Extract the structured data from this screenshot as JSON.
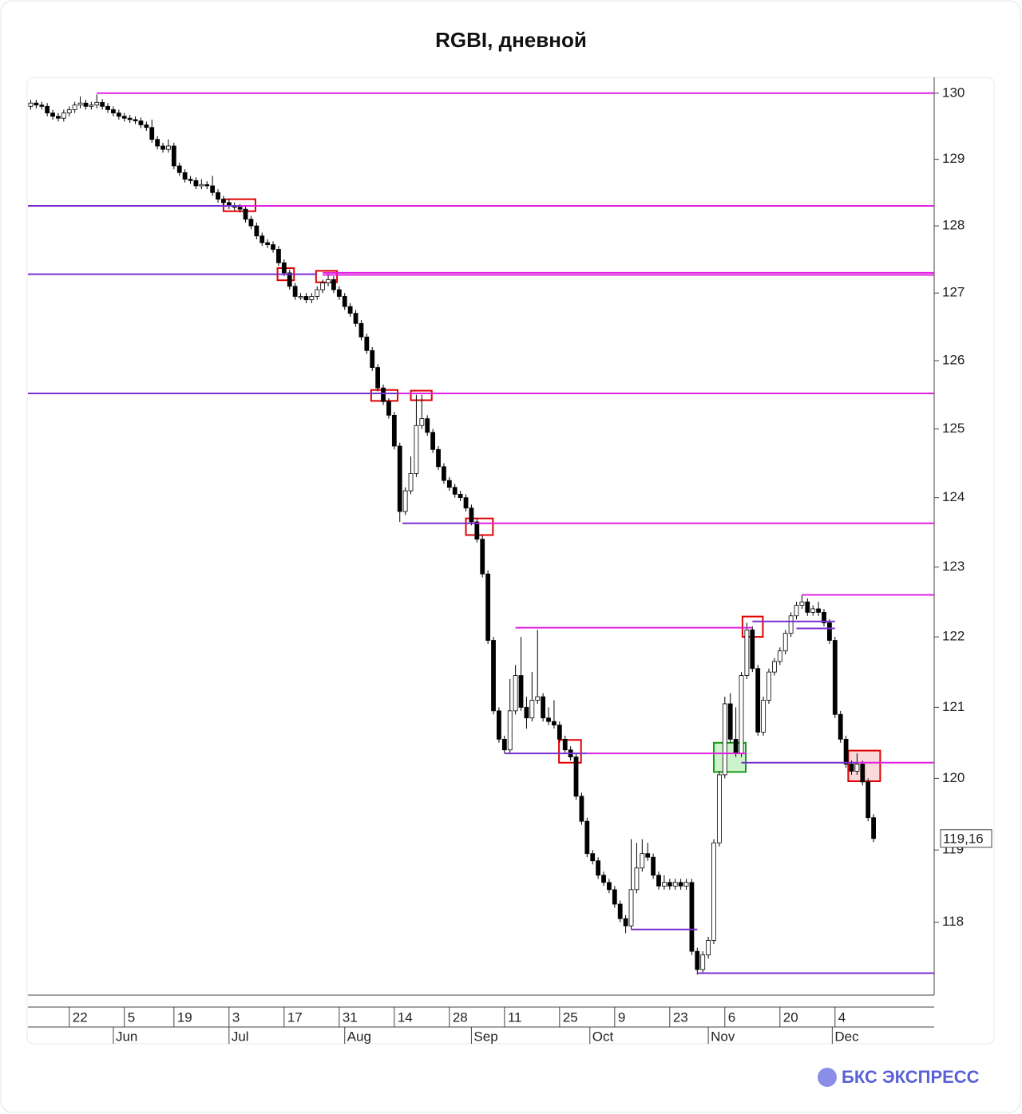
{
  "chart_data": {
    "type": "candlestick",
    "title": "RGBI, дневной",
    "brand": "БКС ЭКСПРЕСС",
    "last_label": "119,16",
    "log_scale": true,
    "up_color": "#ffffff",
    "down_color": "#000000",
    "ylim": [
      117.0,
      130.24
    ],
    "yticks": [
      118,
      119,
      120,
      121,
      122,
      123,
      124,
      125,
      126,
      127,
      128,
      129,
      130
    ],
    "xlim": [
      -0.5,
      164
    ],
    "xticks": [
      {
        "value": 7,
        "label": "22"
      },
      {
        "value": 17,
        "label": "5"
      },
      {
        "value": 26,
        "label": "19"
      },
      {
        "value": 36,
        "label": "3"
      },
      {
        "value": 46,
        "label": "17"
      },
      {
        "value": 56,
        "label": "31"
      },
      {
        "value": 66,
        "label": "14"
      },
      {
        "value": 76,
        "label": "28"
      },
      {
        "value": 86,
        "label": "11"
      },
      {
        "value": 96,
        "label": "25"
      },
      {
        "value": 106,
        "label": "9"
      },
      {
        "value": 116,
        "label": "23"
      },
      {
        "value": 126,
        "label": "6"
      },
      {
        "value": 136,
        "label": "20"
      },
      {
        "value": 146,
        "label": "4"
      }
    ],
    "month_ticks": [
      {
        "value": 15,
        "label": "Jun"
      },
      {
        "value": 36,
        "label": "Jul"
      },
      {
        "value": 57,
        "label": "Aug"
      },
      {
        "value": 80,
        "label": "Sep"
      },
      {
        "value": 101.5,
        "label": "Oct"
      },
      {
        "value": 123,
        "label": "Nov"
      },
      {
        "value": 145.5,
        "label": "Dec"
      }
    ],
    "open": [
      129.8,
      129.85,
      129.82,
      129.8,
      129.7,
      129.65,
      129.62,
      129.7,
      129.75,
      129.82,
      129.85,
      129.8,
      129.82,
      129.86,
      129.8,
      129.75,
      129.7,
      129.65,
      129.62,
      129.6,
      129.58,
      129.52,
      129.48,
      129.3,
      129.2,
      129.15,
      129.2,
      128.9,
      128.8,
      128.7,
      128.68,
      128.6,
      128.62,
      128.6,
      128.5,
      128.4,
      128.35,
      128.3,
      128.28,
      128.25,
      128.1,
      128.0,
      127.85,
      127.75,
      127.72,
      127.65,
      127.45,
      127.3,
      127.1,
      126.95,
      126.95,
      126.9,
      126.95,
      127.05,
      127.15,
      127.2,
      127.05,
      126.95,
      126.8,
      126.7,
      126.55,
      126.35,
      126.15,
      125.9,
      125.6,
      125.4,
      125.2,
      124.75,
      123.8,
      124.1,
      124.35,
      125.05,
      125.15,
      124.95,
      124.7,
      124.45,
      124.25,
      124.15,
      124.05,
      124.0,
      123.85,
      123.65,
      123.4,
      122.9,
      121.95,
      120.95,
      120.55,
      120.4,
      120.95,
      121.45,
      121.0,
      120.85,
      121.1,
      121.15,
      120.85,
      120.8,
      120.75,
      120.55,
      120.4,
      120.3,
      119.75,
      119.4,
      118.95,
      118.85,
      118.65,
      118.55,
      118.45,
      118.25,
      118.05,
      117.95,
      118.45,
      118.75,
      118.95,
      118.9,
      118.65,
      118.5,
      118.55,
      118.5,
      118.55,
      118.5,
      118.55,
      117.6,
      117.35,
      117.55,
      117.75,
      119.1,
      120.05,
      121.05,
      120.55,
      120.35,
      121.45,
      122.1,
      121.55,
      120.65,
      121.1,
      121.5,
      121.65,
      121.8,
      122.05,
      122.3,
      122.45,
      122.5,
      122.35,
      122.4,
      122.35,
      122.2,
      121.95,
      120.9,
      120.55,
      120.2,
      120.1,
      120.2,
      119.95,
      119.45
    ],
    "high": [
      129.9,
      129.9,
      129.87,
      129.85,
      129.75,
      129.7,
      129.75,
      129.8,
      129.87,
      129.95,
      129.9,
      129.87,
      129.98,
      129.91,
      129.85,
      129.8,
      129.75,
      129.7,
      129.67,
      129.65,
      129.63,
      129.57,
      129.6,
      129.35,
      129.25,
      129.3,
      129.25,
      128.95,
      128.85,
      128.75,
      128.73,
      128.7,
      128.67,
      128.75,
      128.55,
      128.45,
      128.4,
      128.35,
      128.33,
      128.3,
      128.15,
      128.05,
      127.9,
      127.8,
      127.77,
      127.7,
      127.5,
      127.35,
      127.15,
      127.0,
      127.0,
      127.0,
      127.1,
      127.2,
      127.3,
      127.25,
      127.1,
      127.0,
      126.85,
      126.75,
      126.6,
      126.4,
      126.2,
      125.95,
      125.65,
      125.45,
      125.25,
      124.8,
      124.15,
      124.6,
      125.5,
      125.5,
      125.2,
      125.0,
      124.75,
      124.5,
      124.3,
      124.2,
      124.1,
      124.05,
      123.9,
      123.7,
      123.45,
      122.95,
      122.0,
      121.0,
      120.6,
      121.4,
      121.6,
      122.0,
      121.15,
      121.5,
      122.1,
      121.2,
      121.0,
      121.1,
      120.8,
      120.6,
      120.45,
      120.35,
      119.8,
      119.45,
      119.0,
      118.9,
      118.7,
      118.6,
      118.5,
      118.3,
      118.1,
      119.15,
      119.1,
      119.15,
      119.1,
      118.95,
      118.7,
      118.65,
      118.6,
      118.6,
      118.6,
      118.6,
      118.6,
      117.65,
      117.6,
      117.8,
      119.15,
      120.1,
      121.15,
      121.2,
      121.0,
      121.5,
      122.2,
      122.15,
      121.6,
      121.15,
      121.55,
      121.7,
      121.85,
      122.1,
      122.35,
      122.5,
      122.6,
      122.55,
      122.45,
      122.5,
      122.4,
      122.25,
      122.0,
      120.95,
      120.6,
      120.25,
      120.35,
      120.25,
      120.0,
      119.5
    ],
    "low": [
      129.75,
      129.77,
      129.75,
      129.65,
      129.6,
      129.57,
      129.57,
      129.65,
      129.7,
      129.77,
      129.75,
      129.75,
      129.77,
      129.75,
      129.7,
      129.65,
      129.6,
      129.57,
      129.55,
      129.53,
      129.47,
      129.43,
      129.25,
      129.15,
      129.1,
      129.1,
      128.85,
      128.75,
      128.65,
      128.63,
      128.55,
      128.55,
      128.55,
      128.45,
      128.35,
      128.3,
      128.25,
      128.23,
      128.2,
      128.05,
      127.95,
      127.8,
      127.7,
      127.67,
      127.6,
      127.4,
      127.25,
      127.05,
      126.9,
      126.9,
      126.85,
      126.85,
      126.9,
      127.0,
      127.1,
      127.0,
      126.9,
      126.75,
      126.65,
      126.5,
      126.3,
      126.1,
      125.85,
      125.55,
      125.35,
      125.15,
      124.7,
      123.65,
      123.75,
      124.05,
      124.3,
      125.0,
      124.9,
      124.65,
      124.4,
      124.2,
      124.1,
      124.0,
      123.95,
      123.8,
      123.6,
      123.35,
      122.85,
      121.9,
      120.9,
      120.5,
      120.35,
      120.35,
      120.9,
      120.95,
      120.7,
      120.8,
      121.05,
      120.8,
      120.75,
      120.7,
      120.5,
      120.35,
      120.25,
      119.7,
      119.35,
      118.9,
      118.8,
      118.6,
      118.5,
      118.4,
      118.2,
      118.0,
      117.85,
      117.9,
      118.4,
      118.7,
      118.85,
      118.6,
      118.45,
      118.45,
      118.45,
      118.45,
      118.45,
      118.45,
      117.55,
      117.28,
      117.3,
      117.5,
      117.7,
      119.05,
      120.0,
      120.5,
      120.3,
      120.3,
      121.4,
      121.5,
      120.6,
      120.6,
      121.05,
      121.45,
      121.6,
      121.75,
      122.0,
      122.25,
      122.4,
      122.3,
      122.3,
      122.3,
      122.15,
      121.9,
      120.85,
      120.5,
      120.15,
      120.05,
      120.05,
      119.9,
      119.4,
      119.11
    ],
    "close": [
      129.85,
      129.82,
      129.8,
      129.7,
      129.65,
      129.62,
      129.7,
      129.75,
      129.82,
      129.85,
      129.8,
      129.82,
      129.86,
      129.8,
      129.75,
      129.7,
      129.65,
      129.62,
      129.6,
      129.58,
      129.52,
      129.48,
      129.3,
      129.2,
      129.15,
      129.2,
      128.9,
      128.8,
      128.7,
      128.68,
      128.6,
      128.62,
      128.6,
      128.5,
      128.4,
      128.35,
      128.3,
      128.28,
      128.25,
      128.1,
      128.0,
      127.85,
      127.75,
      127.72,
      127.65,
      127.45,
      127.3,
      127.1,
      126.95,
      126.95,
      126.9,
      126.95,
      127.05,
      127.15,
      127.2,
      127.05,
      126.95,
      126.8,
      126.7,
      126.55,
      126.35,
      126.15,
      125.9,
      125.6,
      125.4,
      125.2,
      124.75,
      123.8,
      124.1,
      124.35,
      125.05,
      125.15,
      124.95,
      124.7,
      124.45,
      124.25,
      124.15,
      124.05,
      124.0,
      123.85,
      123.65,
      123.4,
      122.9,
      121.95,
      120.95,
      120.55,
      120.4,
      120.95,
      121.45,
      121.0,
      120.85,
      121.1,
      121.15,
      120.85,
      120.8,
      120.75,
      120.55,
      120.4,
      120.3,
      119.75,
      119.4,
      118.95,
      118.85,
      118.65,
      118.55,
      118.45,
      118.25,
      118.05,
      117.95,
      118.45,
      118.75,
      118.95,
      118.9,
      118.65,
      118.5,
      118.55,
      118.5,
      118.55,
      118.5,
      118.55,
      117.6,
      117.35,
      117.55,
      117.75,
      119.1,
      120.05,
      121.05,
      120.55,
      120.35,
      121.45,
      122.1,
      121.55,
      120.65,
      121.1,
      121.5,
      121.65,
      121.8,
      122.05,
      122.3,
      122.45,
      122.5,
      122.35,
      122.4,
      122.35,
      122.2,
      121.95,
      120.9,
      120.55,
      120.2,
      120.1,
      120.2,
      119.95,
      119.45,
      119.16
    ],
    "levels": [
      {
        "value": 130.0,
        "from": 12,
        "color": "#e020e0"
      },
      {
        "value": 128.3,
        "to": 38,
        "color": "#7a2fd0"
      },
      {
        "value": 128.3,
        "from": 38,
        "color": "#e020e0"
      },
      {
        "value": 127.28,
        "to": 52,
        "color": "#7a2fd0"
      },
      {
        "value": 127.3,
        "from": 53,
        "color": "#e020e0"
      },
      {
        "value": 127.27,
        "from": 53,
        "color": "#e020e0"
      },
      {
        "value": 125.52,
        "to": 67,
        "color": "#7a2fd0"
      },
      {
        "value": 125.52,
        "from": 67,
        "color": "#e020e0"
      },
      {
        "value": 123.63,
        "from": 67.5,
        "to": 81,
        "color": "#7a2fd0"
      },
      {
        "value": 123.63,
        "from": 81,
        "color": "#e020e0"
      },
      {
        "value": 122.6,
        "from": 140,
        "color": "#e020e0"
      },
      {
        "value": 122.13,
        "from": 88,
        "to": 131,
        "color": "#e020e0"
      },
      {
        "value": 122.22,
        "from": 131,
        "to": 146,
        "color": "#7a2fd0"
      },
      {
        "value": 122.12,
        "from": 139,
        "to": 146,
        "color": "#7a2fd0"
      },
      {
        "value": 120.35,
        "from": 86,
        "to": 101,
        "color": "#7a2fd0"
      },
      {
        "value": 120.35,
        "from": 101,
        "to": 130,
        "color": "#e020e0"
      },
      {
        "value": 120.22,
        "from": 129,
        "to": 150,
        "color": "#7a2fd0"
      },
      {
        "value": 120.22,
        "from": 150,
        "color": "#e020e0"
      },
      {
        "value": 117.9,
        "from": 109,
        "to": 121,
        "color": "#7a2fd0"
      },
      {
        "value": 117.3,
        "from": 121,
        "color": "#7a2fd0"
      }
    ],
    "boxes": [
      {
        "from": 35,
        "to": 40.8,
        "high": 128.4,
        "low": 128.22,
        "color": "#e00000"
      },
      {
        "from": 44.8,
        "to": 47.8,
        "high": 127.37,
        "low": 127.19,
        "color": "#e00000"
      },
      {
        "from": 51.8,
        "to": 55.6,
        "high": 127.33,
        "low": 127.16,
        "color": "#e00000"
      },
      {
        "from": 61.8,
        "to": 66.6,
        "high": 125.57,
        "low": 125.41,
        "color": "#e00000"
      },
      {
        "from": 69,
        "to": 72.8,
        "high": 125.56,
        "low": 125.42,
        "color": "#e00000"
      },
      {
        "from": 79,
        "to": 83.9,
        "high": 123.7,
        "low": 123.46,
        "color": "#e00000"
      },
      {
        "from": 95.9,
        "to": 99.9,
        "high": 120.54,
        "low": 120.22,
        "color": "#e00000"
      },
      {
        "from": 129.2,
        "to": 132.9,
        "high": 122.29,
        "low": 122.0,
        "color": "#e00000"
      },
      {
        "from": 124,
        "to": 129.8,
        "high": 120.5,
        "low": 120.09,
        "color": "#139a13",
        "fill": "#bff0bf"
      },
      {
        "from": 148.4,
        "to": 154.2,
        "high": 120.39,
        "low": 119.96,
        "color": "#e00000",
        "fill": "#f8d0d0"
      }
    ]
  }
}
